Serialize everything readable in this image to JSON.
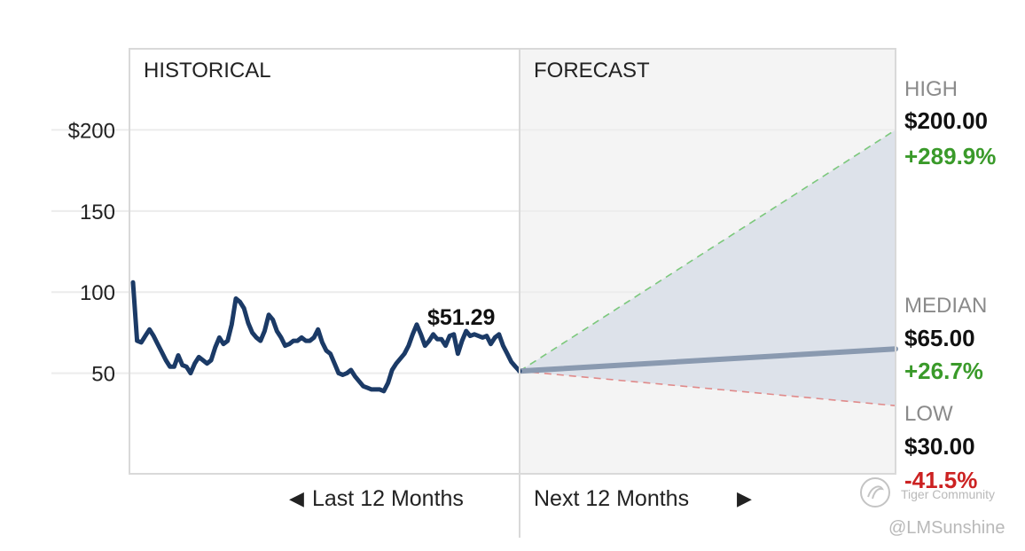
{
  "chart_data": {
    "type": "line",
    "section_labels": {
      "historical": "HISTORICAL",
      "forecast": "FORECAST"
    },
    "y_ticks": [
      {
        "value": 200,
        "label": "$200"
      },
      {
        "value": 150,
        "label": "150"
      },
      {
        "value": 100,
        "label": "100"
      },
      {
        "value": 50,
        "label": "50"
      }
    ],
    "ylim": [
      -12,
      250
    ],
    "x_labels": {
      "last": "Last 12 Months",
      "next": "Next 12 Months"
    },
    "historical_series": [
      106,
      70,
      69,
      73,
      77,
      73,
      68,
      63,
      58,
      54,
      54,
      61,
      55,
      54,
      50,
      56,
      60,
      58,
      56,
      58,
      66,
      72,
      68,
      70,
      80,
      96,
      94,
      90,
      81,
      75,
      72,
      70,
      76,
      86,
      83,
      76,
      72,
      67,
      68,
      70,
      70,
      72,
      70,
      70,
      72,
      77,
      69,
      64,
      62,
      56,
      50,
      49,
      50,
      52,
      48,
      45,
      42,
      41,
      40,
      40,
      40,
      39,
      44,
      52,
      56,
      59,
      62,
      67,
      74,
      80,
      74,
      67,
      70,
      74,
      71,
      71,
      67,
      73,
      74,
      62,
      70,
      76,
      73,
      74,
      73,
      72,
      73,
      68,
      72,
      74,
      67,
      62,
      57,
      54,
      51.29
    ],
    "current_price_label": "$51.29",
    "current_price": 51.29,
    "forecast": {
      "high": {
        "title": "HIGH",
        "price": "$200.00",
        "change": "+289.9%",
        "value": 200,
        "color": "#3a9a2a"
      },
      "median": {
        "title": "MEDIAN",
        "price": "$65.00",
        "change": "+26.7%",
        "value": 65,
        "color": "#3a9a2a"
      },
      "low": {
        "title": "LOW",
        "price": "$30.00",
        "change": "-41.5%",
        "value": 30,
        "color": "#cc2222"
      }
    },
    "colors": {
      "history_line": "#1b3a66",
      "median_line": "#8a9ab0",
      "high_dash": "#7cc87c",
      "low_dash": "#e08a8a",
      "forecast_band": "#dde2ea",
      "forecast_bg": "#f4f4f4"
    }
  },
  "watermark": {
    "brand": "Tiger Community",
    "handle": "@LMSunshine"
  }
}
